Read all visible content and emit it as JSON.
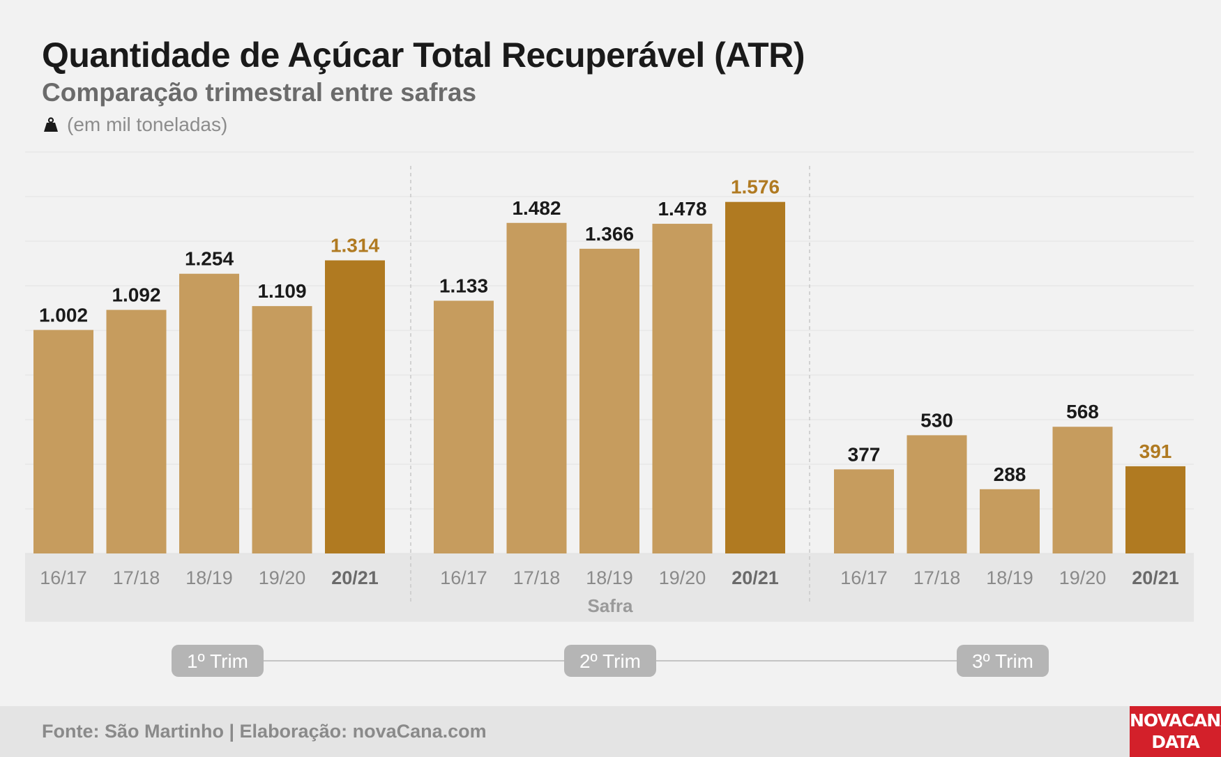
{
  "header": {
    "title": "Quantidade de Açúcar Total Recuperável (ATR)",
    "subtitle": "Comparação trimestral entre safras",
    "unit": "(em mil toneladas)",
    "unit_icon": "weight-icon"
  },
  "footer": {
    "source": "Fonte: São Martinho | Elaboração: novaCana.com",
    "logo_line1": "NOVACANA",
    "logo_line2": "DATA"
  },
  "colors": {
    "bar": "#c69c5e",
    "bar_highlight": "#b07a21",
    "label_highlight": "#b07a21",
    "label": "#1a1a1a",
    "logo_bg": "#d3202a"
  },
  "chart_data": {
    "type": "bar",
    "title": "Quantidade de Açúcar Total Recuperável (ATR)",
    "subtitle": "Comparação trimestral entre safras",
    "xlabel": "Safra",
    "ylabel": "",
    "unit": "(em mil toneladas)",
    "ylim": [
      0,
      1800
    ],
    "grid": true,
    "categories": [
      "16/17",
      "17/18",
      "18/19",
      "19/20",
      "20/21"
    ],
    "highlight_category": "20/21",
    "groups": [
      {
        "name": "1º Trim",
        "labels": [
          "1.002",
          "1.092",
          "1.254",
          "1.109",
          "1.314"
        ],
        "values": [
          1002,
          1092,
          1254,
          1109,
          1314
        ]
      },
      {
        "name": "2º Trim",
        "labels": [
          "1.133",
          "1.482",
          "1.366",
          "1.478",
          "1.576"
        ],
        "values": [
          1133,
          1482,
          1366,
          1478,
          1576
        ]
      },
      {
        "name": "3º Trim",
        "labels": [
          "377",
          "530",
          "288",
          "568",
          "391"
        ],
        "values": [
          377,
          530,
          288,
          568,
          391
        ]
      }
    ]
  }
}
